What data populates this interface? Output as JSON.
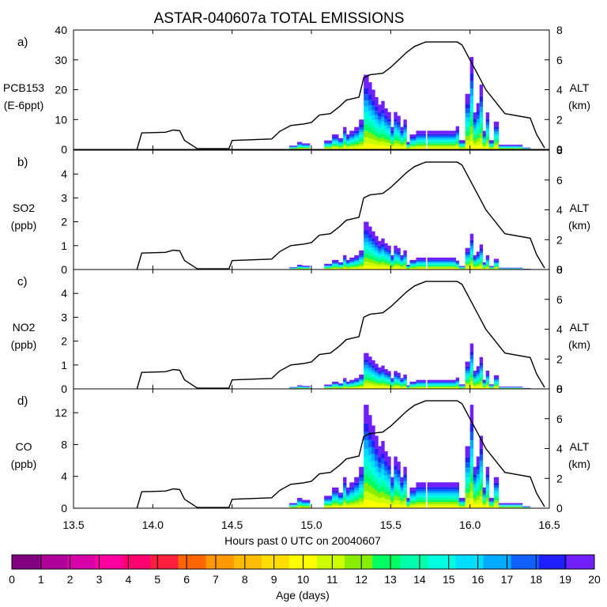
{
  "chart_data": {
    "type": "area",
    "title": "ASTAR-040607a TOTAL EMISSIONS",
    "xlabel": "Hours past 0 UTC on 20040607",
    "x_range": [
      13.5,
      16.5
    ],
    "x_ticks": [
      "13.5",
      "14.0",
      "14.5",
      "15.0",
      "15.5",
      "16.0",
      "16.5"
    ],
    "right_axis": {
      "label_line1": "ALT",
      "label_line2": "(km)",
      "range": [
        0,
        8
      ],
      "ticks": [
        "0",
        "2",
        "4",
        "6",
        "8"
      ]
    },
    "altitude_km": {
      "x": [
        13.9,
        13.93,
        14.08,
        14.13,
        14.17,
        14.2,
        14.28,
        14.48,
        14.5,
        14.75,
        14.8,
        14.87,
        14.95,
        15.0,
        15.05,
        15.12,
        15.18,
        15.22,
        15.3,
        15.33,
        15.37,
        15.45,
        15.5,
        15.6,
        15.65,
        15.72,
        15.92,
        15.95,
        16.05,
        16.1,
        16.22,
        16.38,
        16.42,
        16.47
      ],
      "y": [
        0,
        1.1,
        1.15,
        1.3,
        1.25,
        0.6,
        0.05,
        0.05,
        0.6,
        0.7,
        1.2,
        1.6,
        1.7,
        1.8,
        2.3,
        2.4,
        2.9,
        3.3,
        3.5,
        4.8,
        5.0,
        5.1,
        5.5,
        6.5,
        6.9,
        7.2,
        7.2,
        7.0,
        5.0,
        4.0,
        2.4,
        2.1,
        1.0,
        0.1
      ]
    },
    "colorbar": {
      "label": "Age (days)",
      "ticks": [
        "0",
        "1",
        "2",
        "3",
        "4",
        "5",
        "6",
        "7",
        "8",
        "9",
        "10",
        "11",
        "12",
        "13",
        "14",
        "15",
        "16",
        "17",
        "18",
        "19",
        "20"
      ],
      "colors": [
        "#800080",
        "#b0009a",
        "#d800a8",
        "#ff00a0",
        "#ff0070",
        "#ff2040",
        "#ff6600",
        "#ff9900",
        "#ffbb00",
        "#ffdd00",
        "#ffff00",
        "#ccff00",
        "#88ee00",
        "#00ff60",
        "#00ffaa",
        "#00ffe0",
        "#00ddff",
        "#00aaff",
        "#1060ff",
        "#2020ff",
        "#7020ff"
      ]
    },
    "emission_profile": {
      "x": [
        14.88,
        14.92,
        14.95,
        15.1,
        15.15,
        15.18,
        15.2,
        15.22,
        15.25,
        15.28,
        15.3,
        15.34,
        15.36,
        15.38,
        15.4,
        15.42,
        15.44,
        15.46,
        15.48,
        15.5,
        15.52,
        15.54,
        15.56,
        15.58,
        15.6,
        15.62,
        15.68,
        15.75,
        15.8,
        15.85,
        15.9,
        15.95,
        15.98,
        16.0,
        16.02,
        16.04,
        16.06,
        16.08,
        16.1,
        16.12,
        16.16,
        16.2,
        16.25,
        16.3,
        16.35
      ],
      "weight": [
        0.05,
        0.1,
        0.08,
        0.12,
        0.2,
        0.15,
        0.3,
        0.2,
        0.25,
        0.3,
        0.4,
        1.0,
        0.9,
        0.8,
        0.7,
        0.6,
        0.65,
        0.55,
        0.5,
        0.3,
        0.5,
        0.45,
        0.3,
        0.4,
        0.1,
        0.2,
        0.25,
        0.25,
        0.25,
        0.25,
        0.25,
        0.1,
        0.6,
        1.0,
        0.4,
        0.5,
        0.7,
        0.2,
        0.4,
        0.1,
        0.3,
        0.05,
        0.05,
        0.05,
        0.02
      ]
    },
    "panels": [
      {
        "letter": "a)",
        "species": "PCB153",
        "unit": "(E-6ppt)",
        "ylim": [
          0,
          40
        ],
        "y_ticks": [
          "0",
          "10",
          "20",
          "30",
          "40"
        ],
        "peak": 25,
        "second_peak": 31
      },
      {
        "letter": "b)",
        "species": "SO2",
        "unit": "(ppb)",
        "ylim": [
          0,
          5
        ],
        "y_ticks": [
          "0",
          "1",
          "2",
          "3",
          "4"
        ],
        "peak": 2.0,
        "second_peak": 1.5
      },
      {
        "letter": "c)",
        "species": "NO2",
        "unit": "(ppb)",
        "ylim": [
          0,
          5
        ],
        "y_ticks": [
          "0",
          "1",
          "2",
          "3",
          "4"
        ],
        "peak": 1.5,
        "second_peak": 1.9
      },
      {
        "letter": "d)",
        "species": "CO",
        "unit": "(ppb)",
        "ylim": [
          0,
          15
        ],
        "y_ticks": [
          "0",
          "4",
          "8",
          "12"
        ],
        "peak": 13,
        "second_peak": 13
      }
    ]
  }
}
